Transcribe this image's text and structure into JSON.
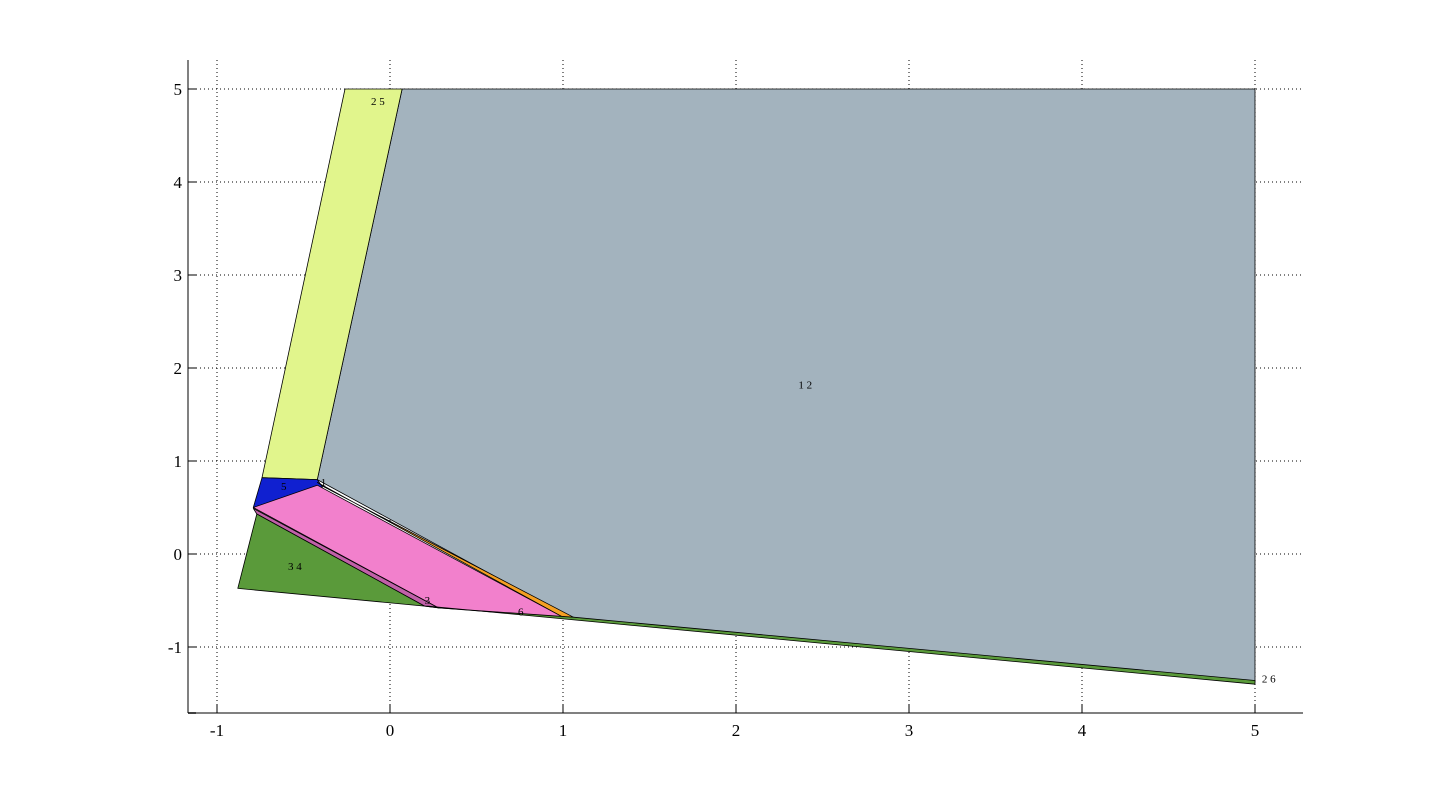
{
  "chart_data": {
    "type": "area",
    "title": "",
    "xlabel": "",
    "ylabel": "",
    "xlim": [
      -1.2,
      5.3
    ],
    "ylim": [
      -1.7,
      5.3
    ],
    "grid": true,
    "grid_style": "dotted",
    "x_ticks": [
      -1,
      0,
      1,
      2,
      3,
      4,
      5
    ],
    "y_ticks": [
      -1,
      0,
      1,
      2,
      3,
      4,
      5
    ],
    "x_tick_labels": [
      "-1",
      "0",
      "1",
      "2",
      "3",
      "4",
      "5"
    ],
    "y_tick_labels": [
      "-1",
      "0",
      "1",
      "2",
      "3",
      "4",
      "5"
    ],
    "regions": [
      {
        "label": "1 2",
        "color": "#a3b3be",
        "label_at": [
          2.4,
          1.78
        ],
        "points": [
          [
            0.07,
            5
          ],
          [
            5,
            5
          ],
          [
            5,
            -1.38
          ],
          [
            1.05,
            -0.69
          ],
          [
            -0.42,
            0.8
          ]
        ]
      },
      {
        "label": "2 5",
        "color": "#e1f58c",
        "label_at": [
          -0.07,
          4.83
        ],
        "points": [
          [
            -0.26,
            5
          ],
          [
            0.07,
            5
          ],
          [
            -0.42,
            0.8
          ],
          [
            -0.74,
            0.82
          ]
        ]
      },
      {
        "label": "5",
        "color": "#1020d0",
        "label_at": [
          -0.64,
          0.69
        ],
        "points": [
          [
            -0.74,
            0.82
          ],
          [
            -0.42,
            0.8
          ],
          [
            -0.39,
            0.72
          ],
          [
            -0.79,
            0.5
          ]
        ]
      },
      {
        "label": "",
        "color": "#f5a023",
        "label_at": null,
        "points": [
          [
            -0.42,
            0.77
          ],
          [
            -0.38,
            0.72
          ],
          [
            1.06,
            -0.68
          ],
          [
            1.0,
            -0.68
          ]
        ]
      },
      {
        "label": "",
        "color": "#f280cc",
        "label_at": null,
        "points": [
          [
            -0.79,
            0.5
          ],
          [
            -0.42,
            0.74
          ],
          [
            1.0,
            -0.68
          ],
          [
            0.28,
            -0.58
          ]
        ]
      },
      {
        "label": "",
        "color": "#c060a8",
        "label_at": null,
        "points": [
          [
            -0.79,
            0.49
          ],
          [
            -0.77,
            0.43
          ],
          [
            0.2,
            -0.56
          ],
          [
            0.28,
            -0.58
          ]
        ]
      },
      {
        "label": "3 4",
        "color": "#5a9a3a",
        "label_at": [
          -0.55,
          -0.17
        ],
        "points": [
          [
            -0.77,
            0.43
          ],
          [
            0.2,
            -0.56
          ],
          [
            -0.88,
            -0.37
          ]
        ]
      },
      {
        "label": "",
        "color": "#5a9a3a",
        "label_at": null,
        "points": [
          [
            0.2,
            -0.56
          ],
          [
            0.28,
            -0.58
          ],
          [
            1.06,
            -0.68
          ],
          [
            5,
            -1.36
          ],
          [
            5,
            -1.4
          ],
          [
            0.22,
            -0.56
          ]
        ]
      }
    ],
    "annotations": [
      {
        "text": "5",
        "x": -0.63,
        "y": 0.69
      },
      {
        "text": "1",
        "x": -0.4,
        "y": 0.73
      },
      {
        "text": "3",
        "x": 0.2,
        "y": -0.54
      },
      {
        "text": "6",
        "x": 0.74,
        "y": -0.66
      },
      {
        "text": "2 6",
        "x": 5.04,
        "y": -1.38
      }
    ]
  }
}
